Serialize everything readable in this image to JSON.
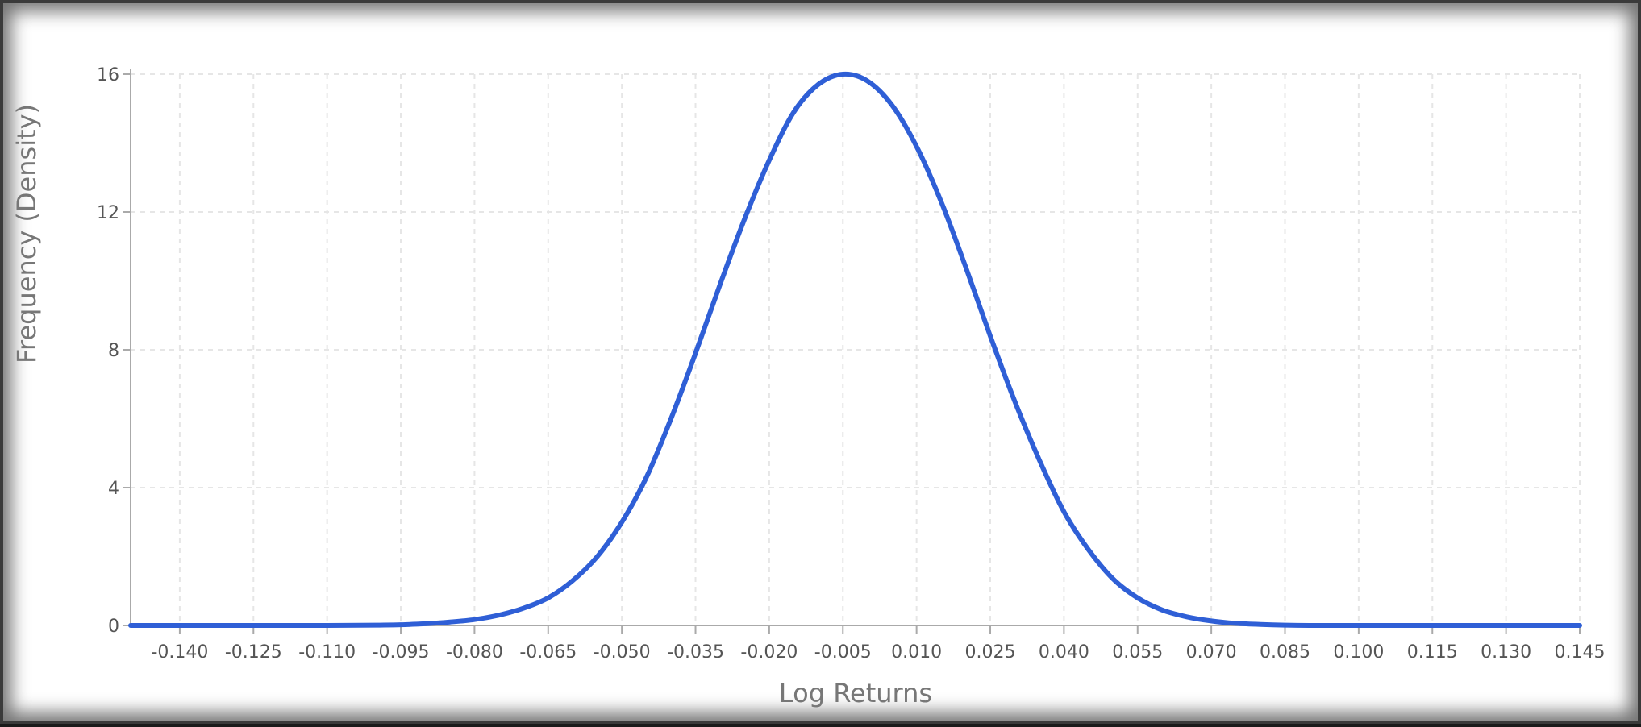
{
  "chart_data": {
    "type": "line",
    "xlabel": "Log Returns",
    "ylabel": "Frequency (Density)",
    "xlim": [
      -0.15,
      0.145
    ],
    "ylim": [
      0,
      16
    ],
    "x_ticks": [
      "-0.140",
      "-0.125",
      "-0.110",
      "-0.095",
      "-0.080",
      "-0.065",
      "-0.050",
      "-0.035",
      "-0.020",
      "-0.005",
      "0.010",
      "0.025",
      "0.040",
      "0.055",
      "0.070",
      "0.085",
      "0.100",
      "0.115",
      "0.130",
      "0.145"
    ],
    "y_ticks": [
      "0",
      "4",
      "8",
      "12",
      "16"
    ],
    "grid": true,
    "colors": {
      "line": "#2f5fd6",
      "axis": "#aaaaaa",
      "grid": "#e6e6e6"
    },
    "series": [
      {
        "x": [
          -0.15,
          -0.14,
          -0.13,
          -0.12,
          -0.11,
          -0.1,
          -0.095,
          -0.09,
          -0.085,
          -0.08,
          -0.075,
          -0.07,
          -0.065,
          -0.06,
          -0.055,
          -0.05,
          -0.045,
          -0.04,
          -0.035,
          -0.03,
          -0.025,
          -0.02,
          -0.015,
          -0.01,
          -0.005,
          0.0,
          0.005,
          0.01,
          0.015,
          0.02,
          0.025,
          0.03,
          0.035,
          0.04,
          0.045,
          0.05,
          0.055,
          0.06,
          0.065,
          0.07,
          0.075,
          0.08,
          0.085,
          0.09,
          0.1,
          0.11,
          0.12,
          0.13,
          0.14,
          0.145
        ],
        "y": [
          0.0,
          0.0,
          0.0,
          0.0,
          0.0,
          0.01,
          0.02,
          0.05,
          0.1,
          0.17,
          0.3,
          0.5,
          0.8,
          1.3,
          2.0,
          3.0,
          4.3,
          6.0,
          7.9,
          9.9,
          11.8,
          13.5,
          14.9,
          15.7,
          16.0,
          15.8,
          15.1,
          13.9,
          12.3,
          10.4,
          8.4,
          6.5,
          4.8,
          3.3,
          2.2,
          1.35,
          0.8,
          0.45,
          0.25,
          0.13,
          0.06,
          0.03,
          0.01,
          0.0,
          0.0,
          0.0,
          0.0,
          0.0,
          0.0,
          0.0
        ]
      }
    ]
  }
}
